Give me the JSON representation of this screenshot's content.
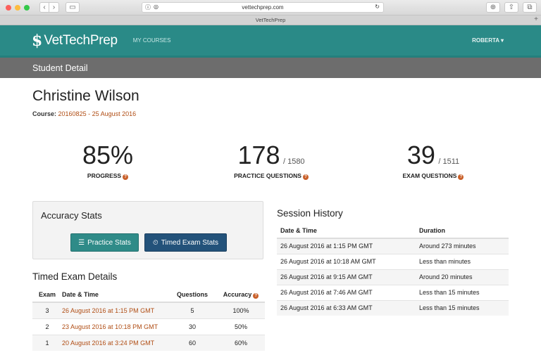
{
  "browser": {
    "url": "vettechprep.com",
    "tab_title": "VetTechPrep",
    "traffic_colors": [
      "#fc605c",
      "#fdbc40",
      "#34c84a"
    ]
  },
  "nav": {
    "logo_mark": "$",
    "logo_text": "VetTechPrep",
    "my_courses": "MY COURSES",
    "user": "ROBERTA ▾"
  },
  "page": {
    "subheader": "Student Detail",
    "student_name": "Christine Wilson",
    "course_label": "Course:",
    "course_value": "20160825 - 25 August 2016"
  },
  "stats": {
    "progress": {
      "value": "85%",
      "label": "PROGRESS"
    },
    "practice": {
      "value": "178",
      "total": "/ 1580",
      "label": "PRACTICE QUESTIONS"
    },
    "exam": {
      "value": "39",
      "total": "/ 1511",
      "label": "EXAM QUESTIONS"
    }
  },
  "accuracy": {
    "title": "Accuracy Stats",
    "practice_btn": "Practice Stats",
    "exam_btn": "Timed Exam Stats"
  },
  "timed": {
    "title": "Timed Exam Details",
    "headers": [
      "Exam",
      "Date & Time",
      "Questions",
      "Accuracy"
    ],
    "rows": [
      {
        "exam": "3",
        "date": "26 August 2016 at 1:15 PM GMT",
        "questions": "5",
        "accuracy": "100%"
      },
      {
        "exam": "2",
        "date": "23 August 2016 at 10:18 PM GMT",
        "questions": "30",
        "accuracy": "50%"
      },
      {
        "exam": "1",
        "date": "20 August 2016 at 3:24 PM GMT",
        "questions": "60",
        "accuracy": "60%"
      }
    ]
  },
  "session": {
    "title": "Session History",
    "headers": [
      "Date & Time",
      "Duration"
    ],
    "rows": [
      {
        "date": "26 August 2016 at 1:15 PM GMT",
        "duration": "Around 273 minutes"
      },
      {
        "date": "26 August 2016 at 10:18 AM GMT",
        "duration": "Less than minutes"
      },
      {
        "date": "26 August 2016 at 9:15 AM GMT",
        "duration": "Around 20 minutes"
      },
      {
        "date": "26 August 2016 at 7:46 AM GMT",
        "duration": "Less than 15 minutes"
      },
      {
        "date": "26 August 2016 at 6:33 AM GMT",
        "duration": "Less than 15 minutes"
      }
    ]
  }
}
